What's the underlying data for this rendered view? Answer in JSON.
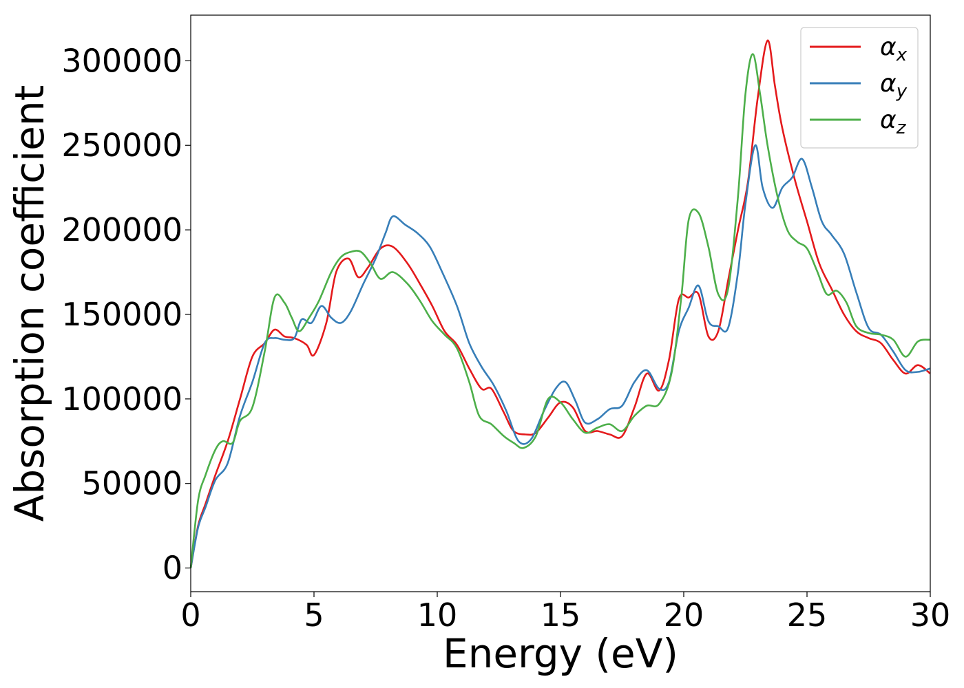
{
  "chart_data": {
    "type": "line",
    "xlabel": "Energy (eV)",
    "ylabel": "Absorption coefficient",
    "xlim": [
      0,
      30
    ],
    "ylim": [
      -14000,
      327000
    ],
    "xticks": [
      0,
      5,
      10,
      15,
      20,
      25,
      30
    ],
    "yticks": [
      0,
      50000,
      100000,
      150000,
      200000,
      250000,
      300000
    ],
    "grid": false,
    "legend_position": "top-right",
    "series": [
      {
        "name": "α_x",
        "label_base": "α",
        "label_sub": "x",
        "color": "#e41a1c",
        "x": [
          0,
          0.3,
          0.6,
          1.0,
          1.5,
          2.0,
          2.5,
          3.0,
          3.4,
          3.8,
          4.2,
          4.7,
          5.0,
          5.5,
          5.9,
          6.4,
          6.8,
          7.2,
          7.7,
          8.2,
          8.8,
          9.3,
          9.8,
          10.3,
          10.8,
          11.3,
          11.8,
          12.2,
          12.7,
          13.1,
          13.6,
          14.0,
          14.5,
          15.0,
          15.5,
          16.0,
          16.5,
          17.0,
          17.5,
          18.0,
          18.5,
          19.0,
          19.4,
          19.8,
          20.2,
          20.6,
          21.0,
          21.4,
          21.8,
          22.2,
          22.6,
          23.0,
          23.4,
          23.7,
          24.0,
          24.5,
          25.0,
          25.5,
          26.0,
          26.5,
          27.0,
          27.5,
          28.0,
          28.5,
          29.0,
          29.5,
          30.0
        ],
        "y": [
          0,
          25000,
          38000,
          55000,
          75000,
          100000,
          125000,
          133000,
          141000,
          137000,
          136000,
          132000,
          126000,
          145000,
          175000,
          183000,
          172000,
          178000,
          189000,
          190000,
          180000,
          168000,
          155000,
          140000,
          132000,
          118000,
          106000,
          106000,
          92000,
          81000,
          79000,
          80000,
          89000,
          98000,
          95000,
          81000,
          81000,
          79000,
          78000,
          95000,
          115000,
          105000,
          123000,
          159000,
          160000,
          162000,
          137000,
          140000,
          170000,
          200000,
          228000,
          278000,
          312000,
          285000,
          260000,
          230000,
          205000,
          180000,
          165000,
          150000,
          140000,
          136000,
          133000,
          123000,
          115000,
          120000,
          115000
        ]
      },
      {
        "name": "α_y",
        "label_base": "α",
        "label_sub": "y",
        "color": "#377eb8",
        "x": [
          0,
          0.3,
          0.6,
          1.0,
          1.5,
          2.0,
          2.5,
          3.0,
          3.4,
          3.8,
          4.2,
          4.5,
          4.9,
          5.3,
          5.7,
          6.1,
          6.5,
          7.0,
          7.5,
          7.9,
          8.2,
          8.7,
          9.2,
          9.7,
          10.2,
          10.8,
          11.3,
          11.8,
          12.3,
          12.8,
          13.3,
          13.8,
          14.3,
          14.8,
          15.2,
          15.6,
          16.0,
          16.5,
          17.0,
          17.5,
          18.0,
          18.5,
          19.0,
          19.4,
          19.8,
          20.2,
          20.6,
          21.0,
          21.4,
          21.8,
          22.2,
          22.5,
          22.9,
          23.2,
          23.6,
          24.0,
          24.4,
          24.8,
          25.2,
          25.6,
          26.0,
          26.5,
          27.0,
          27.5,
          28.0,
          28.5,
          29.0,
          29.5,
          30.0
        ],
        "y": [
          0,
          24000,
          36000,
          52000,
          62000,
          90000,
          110000,
          133000,
          136000,
          135000,
          136000,
          147000,
          145000,
          155000,
          148000,
          145000,
          152000,
          168000,
          183000,
          198000,
          208000,
          203000,
          198000,
          190000,
          175000,
          155000,
          133000,
          119000,
          108000,
          93000,
          75000,
          76000,
          92000,
          106000,
          110000,
          99000,
          86000,
          88000,
          94000,
          96000,
          110000,
          117000,
          106000,
          110000,
          140000,
          154000,
          167000,
          146000,
          143000,
          142000,
          175000,
          215000,
          250000,
          225000,
          213000,
          225000,
          231000,
          242000,
          225000,
          205000,
          197000,
          186000,
          163000,
          142000,
          138000,
          128000,
          117000,
          116000,
          118000
        ]
      },
      {
        "name": "α_z",
        "label_base": "α",
        "label_sub": "z",
        "color": "#4daf4a",
        "x": [
          0,
          0.3,
          0.6,
          1.0,
          1.3,
          1.7,
          2.0,
          2.5,
          3.0,
          3.4,
          3.8,
          4.1,
          4.4,
          4.8,
          5.2,
          5.7,
          6.1,
          6.5,
          6.9,
          7.3,
          7.7,
          8.2,
          8.8,
          9.3,
          9.8,
          10.3,
          10.8,
          11.3,
          11.7,
          12.2,
          12.7,
          13.1,
          13.5,
          14.0,
          14.5,
          15.0,
          15.5,
          16.0,
          16.5,
          17.0,
          17.5,
          18.0,
          18.5,
          19.0,
          19.5,
          19.9,
          20.2,
          20.6,
          21.0,
          21.4,
          21.8,
          22.2,
          22.5,
          22.8,
          23.1,
          23.4,
          23.8,
          24.2,
          24.6,
          25.0,
          25.4,
          25.8,
          26.2,
          26.6,
          27.0,
          27.5,
          28.0,
          28.5,
          29.0,
          29.5,
          30.0
        ],
        "y": [
          0,
          40000,
          55000,
          70000,
          75000,
          74000,
          87000,
          95000,
          128000,
          160000,
          157000,
          148000,
          140000,
          148000,
          158000,
          175000,
          184000,
          187000,
          187000,
          180000,
          171000,
          175000,
          168000,
          158000,
          146000,
          138000,
          130000,
          110000,
          90000,
          85000,
          78000,
          74000,
          71000,
          78000,
          100000,
          98000,
          88000,
          80000,
          83000,
          85000,
          81000,
          90000,
          96000,
          97000,
          115000,
          160000,
          206000,
          210000,
          190000,
          162000,
          165000,
          220000,
          280000,
          304000,
          280000,
          250000,
          220000,
          200000,
          193000,
          189000,
          176000,
          162000,
          164000,
          157000,
          143000,
          139000,
          138000,
          135000,
          125000,
          134000,
          135000
        ]
      }
    ]
  }
}
